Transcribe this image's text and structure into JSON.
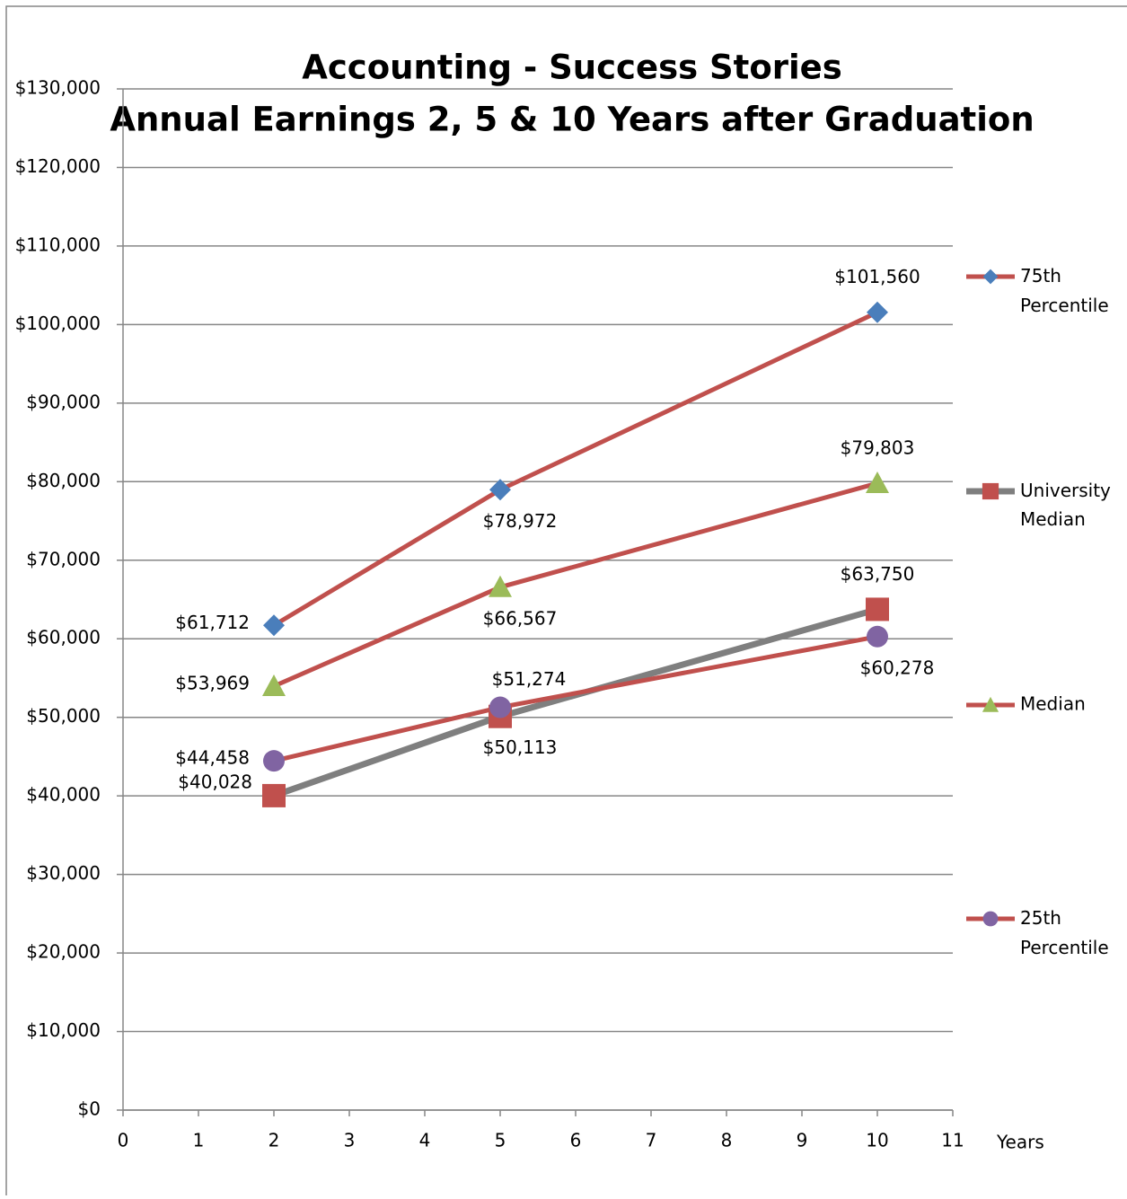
{
  "chart_data": {
    "type": "line",
    "title": "Accounting - Success Stories",
    "subtitle": "Annual Earnings 2, 5 & 10 Years after Graduation",
    "x_label": "Years",
    "x": [
      2,
      5,
      10
    ],
    "series": [
      {
        "name": "75th Percentile",
        "color": "#c0504d",
        "marker": "diamond",
        "marker_color": "#4a7ebb",
        "values": [
          61712,
          78972,
          101560
        ],
        "value_labels": [
          "$61,712",
          "$78,972",
          "$101,560"
        ]
      },
      {
        "name": "University Median",
        "color": "#7f7f7f",
        "marker": "square",
        "marker_color": "#c0504d",
        "values": [
          40028,
          50113,
          63750
        ],
        "value_labels": [
          "$40,028",
          "$50,113",
          "$63,750"
        ]
      },
      {
        "name": "Median",
        "color": "#c0504d",
        "marker": "triangle",
        "marker_color": "#9bbb59",
        "values": [
          53969,
          66567,
          79803
        ],
        "value_labels": [
          "$53,969",
          "$66,567",
          "$79,803"
        ]
      },
      {
        "name": "25th Percentile",
        "color": "#c0504d",
        "marker": "circle",
        "marker_color": "#8064a2",
        "values": [
          44458,
          51274,
          60278
        ],
        "value_labels": [
          "$44,458",
          "$51,274",
          "$60,278"
        ]
      }
    ],
    "xlim": [
      0,
      11
    ],
    "xticks": [
      0,
      1,
      2,
      3,
      4,
      5,
      6,
      7,
      8,
      9,
      10,
      11
    ],
    "ylim": [
      0,
      130000
    ],
    "yticks": [
      {
        "value": 0,
        "label": "$0"
      },
      {
        "value": 10000,
        "label": "$10,000"
      },
      {
        "value": 20000,
        "label": "$20,000"
      },
      {
        "value": 30000,
        "label": "$30,000"
      },
      {
        "value": 40000,
        "label": "$40,000"
      },
      {
        "value": 50000,
        "label": "$50,000"
      },
      {
        "value": 60000,
        "label": "$60,000"
      },
      {
        "value": 70000,
        "label": "$70,000"
      },
      {
        "value": 80000,
        "label": "$80,000"
      },
      {
        "value": 90000,
        "label": "$90,000"
      },
      {
        "value": 100000,
        "label": "$100,000"
      },
      {
        "value": 110000,
        "label": "$110,000"
      },
      {
        "value": 120000,
        "label": "$120,000"
      },
      {
        "value": 130000,
        "label": "$130,000"
      }
    ],
    "grid": true,
    "legend": "right"
  }
}
